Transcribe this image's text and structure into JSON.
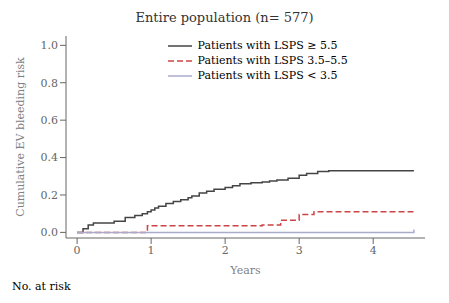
{
  "chart_data": {
    "type": "step",
    "title": "Entire population (n= 577)",
    "xlabel": "Years",
    "ylabel": "Cumulative EV bleeding risk",
    "xlim": [
      -0.15,
      4.7
    ],
    "ylim": [
      -0.03,
      1.05
    ],
    "xticks": [
      0,
      1,
      2,
      3,
      4
    ],
    "yticks": [
      {
        "value": 0.0,
        "label": "0.0"
      },
      0.2,
      0.4,
      0.6,
      0.8,
      {
        "value": 1.0,
        "label": "1.0"
      }
    ],
    "annotations": [
      "No. at risk"
    ],
    "legend": "upper left",
    "grid": false,
    "series": [
      {
        "name": "Patients with LSPS ≥ 5.5",
        "color": "#444444",
        "line_style": "solid",
        "x": [
          0,
          0.08,
          0.15,
          0.22,
          0.5,
          0.65,
          0.78,
          0.88,
          0.95,
          1.0,
          1.05,
          1.1,
          1.2,
          1.3,
          1.4,
          1.5,
          1.55,
          1.65,
          1.75,
          1.85,
          2.0,
          2.1,
          2.2,
          2.35,
          2.5,
          2.6,
          2.7,
          2.85,
          3.0,
          3.1,
          3.25,
          3.4,
          3.5,
          4.55
        ],
        "values": [
          0.0,
          0.02,
          0.04,
          0.05,
          0.06,
          0.08,
          0.09,
          0.1,
          0.11,
          0.12,
          0.13,
          0.14,
          0.155,
          0.165,
          0.175,
          0.185,
          0.195,
          0.21,
          0.22,
          0.23,
          0.24,
          0.25,
          0.26,
          0.265,
          0.27,
          0.275,
          0.28,
          0.29,
          0.305,
          0.315,
          0.325,
          0.33,
          0.33,
          0.33
        ]
      },
      {
        "name": "Patients with LSPS 3.5–5.5",
        "color": "#cc4444",
        "line_style": "dashed",
        "x": [
          0,
          0.85,
          0.95,
          2.5,
          2.75,
          3.0,
          3.2,
          4.55
        ],
        "values": [
          0.0,
          0.0,
          0.035,
          0.04,
          0.065,
          0.095,
          0.11,
          0.11
        ]
      },
      {
        "name": "Patients with LSPS < 3.5",
        "color": "#aaaacc",
        "line_style": "solid",
        "x": [
          0,
          2.9,
          4.55
        ],
        "values": [
          0.0,
          0.0,
          0.015
        ]
      }
    ]
  }
}
